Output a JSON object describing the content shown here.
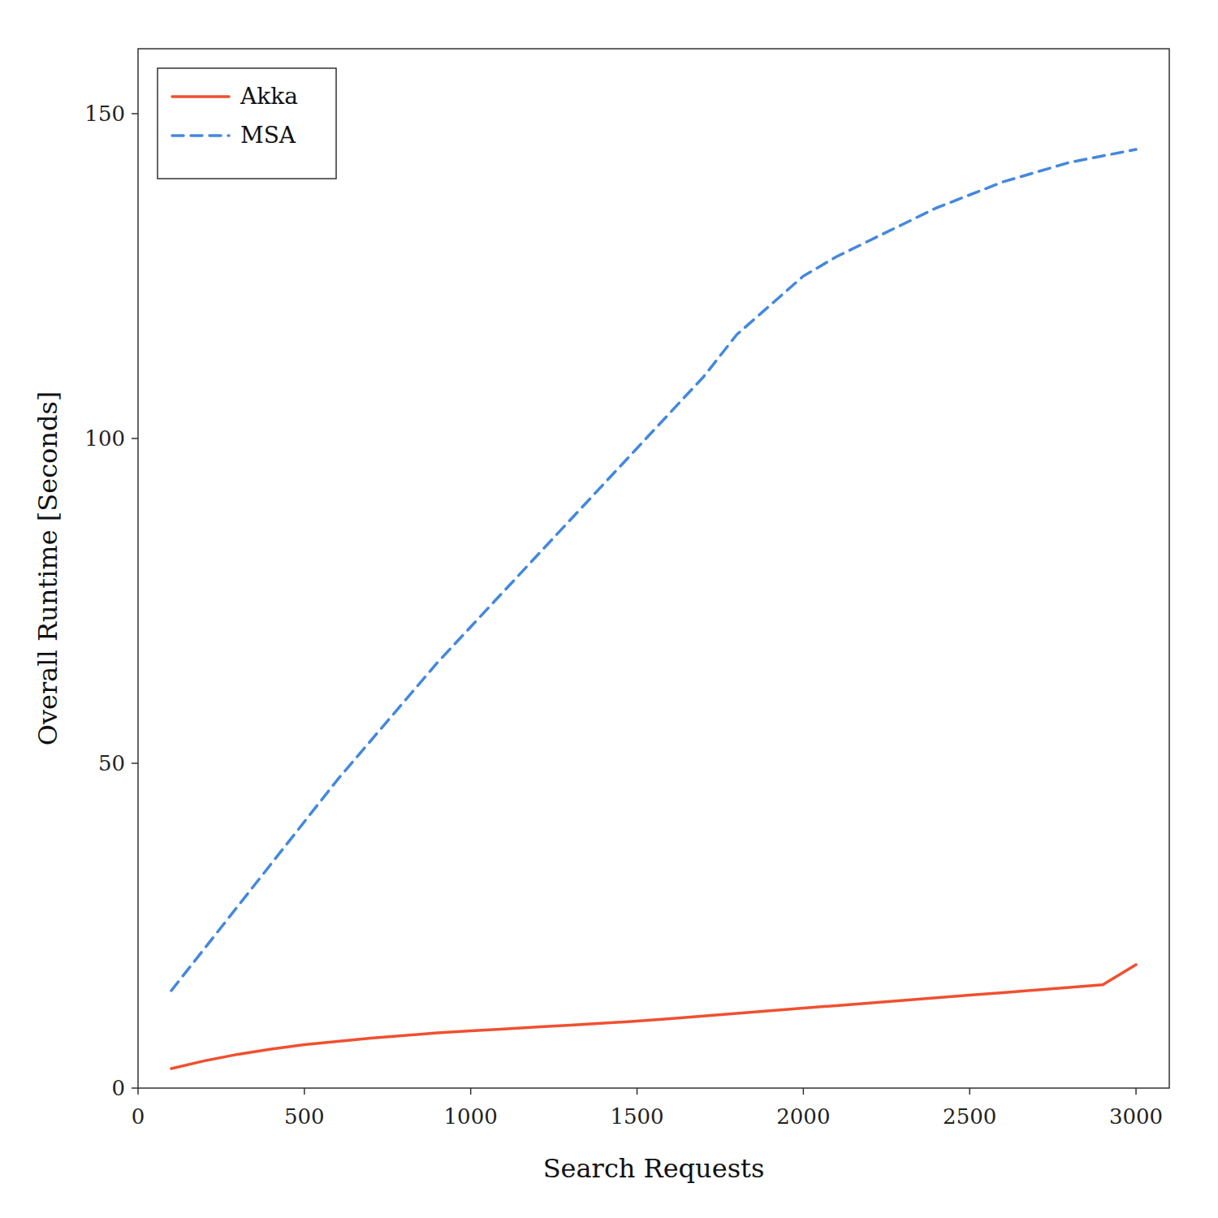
{
  "chart_data": {
    "type": "line",
    "xlabel": "Search Requests",
    "ylabel": "Overall Runtime [Seconds]",
    "x": [
      100,
      200,
      300,
      400,
      500,
      600,
      700,
      800,
      900,
      1000,
      1100,
      1200,
      1300,
      1400,
      1500,
      1600,
      1700,
      1800,
      1900,
      2000,
      2100,
      2200,
      2300,
      2400,
      2500,
      2600,
      2700,
      2800,
      2900,
      3000
    ],
    "series": [
      {
        "name": "Akka",
        "color": "#f05030",
        "line_style": "solid",
        "values": [
          3.0,
          4.2,
          5.2,
          6.0,
          6.7,
          7.2,
          7.7,
          8.1,
          8.5,
          8.8,
          9.1,
          9.4,
          9.7,
          10.0,
          10.3,
          10.7,
          11.1,
          11.5,
          11.9,
          12.3,
          12.7,
          13.1,
          13.5,
          13.9,
          14.3,
          14.7,
          15.1,
          15.5,
          15.9,
          19.0
        ]
      },
      {
        "name": "MSA",
        "color": "#4488dd",
        "line_style": "dashed",
        "values": [
          15.0,
          21.5,
          28.0,
          34.5,
          41.0,
          47.5,
          53.5,
          59.5,
          65.5,
          71.0,
          76.5,
          82.0,
          87.5,
          93.0,
          98.5,
          104.0,
          109.5,
          116.0,
          120.5,
          125.0,
          128.0,
          130.5,
          133.0,
          135.5,
          137.5,
          139.5,
          141.0,
          142.5,
          143.5,
          144.5
        ]
      }
    ],
    "xlim": [
      0,
      3100
    ],
    "ylim": [
      0,
      160
    ],
    "xticks": [
      0,
      500,
      1000,
      1500,
      2000,
      2500,
      3000
    ],
    "yticks": [
      0,
      50,
      100,
      150
    ],
    "grid": false,
    "legend": "upper left"
  }
}
